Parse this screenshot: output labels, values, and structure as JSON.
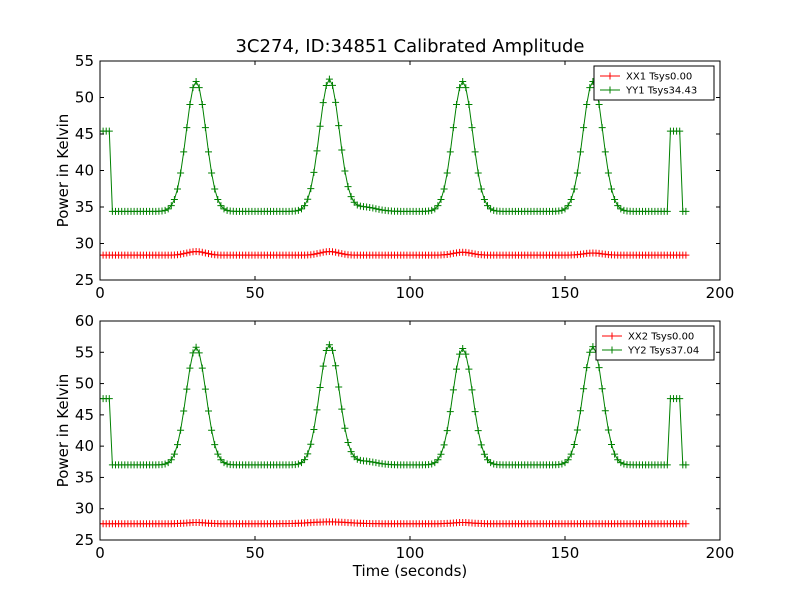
{
  "chart_data": {
    "title": "3C274, ID:34851 Calibrated Amplitude",
    "charts": [
      {
        "type": "line",
        "ylabel": "Power in Kelvin",
        "xlabel": "",
        "xlim": [
          0,
          200
        ],
        "ylim": [
          25,
          55
        ],
        "xticks": [
          0,
          50,
          100,
          150,
          200
        ],
        "yticks": [
          25,
          30,
          35,
          40,
          45,
          50,
          55
        ],
        "legend_position": "top-right",
        "grid": false,
        "x_start": 0,
        "x_end": 189,
        "x_step": 1,
        "series": [
          {
            "name": "XX1 Tsys0.00",
            "color": "#ff0000",
            "marker": "+",
            "baseline": 28.4,
            "bumps": [
              [
                31,
                0.5,
                3
              ],
              [
                74,
                0.5,
                3
              ],
              [
                117,
                0.4,
                3
              ],
              [
                159,
                0.3,
                3
              ]
            ],
            "plateaus": []
          },
          {
            "name": "YY1 Tsys34.43",
            "color": "#008000",
            "marker": "+",
            "baseline": 34.4,
            "bumps": [
              [
                31,
                17.8,
                3.2
              ],
              [
                74,
                18.1,
                3.2
              ],
              [
                117,
                17.8,
                3.2
              ],
              [
                159,
                17.8,
                3.2
              ],
              [
                85,
                0.6,
                4
              ]
            ],
            "plateaus": [
              [
                0,
                3,
                45.4
              ],
              [
                184,
                187,
                45.4
              ]
            ]
          }
        ]
      },
      {
        "type": "line",
        "ylabel": "Power in Kelvin",
        "xlabel": "Time (seconds)",
        "xlim": [
          0,
          200
        ],
        "ylim": [
          25,
          60
        ],
        "xticks": [
          0,
          50,
          100,
          150,
          200
        ],
        "yticks": [
          25,
          30,
          35,
          40,
          45,
          50,
          55,
          60
        ],
        "legend_position": "top-right",
        "grid": false,
        "x_start": 0,
        "x_end": 189,
        "x_step": 1,
        "series": [
          {
            "name": "XX2 Tsys0.00",
            "color": "#ff0000",
            "marker": "+",
            "baseline": 27.6,
            "bumps": [
              [
                74,
                0.3,
                6
              ],
              [
                31,
                0.2,
                3
              ],
              [
                117,
                0.2,
                3
              ]
            ],
            "plateaus": []
          },
          {
            "name": "YY2 Tsys37.04",
            "color": "#008000",
            "marker": "+",
            "baseline": 37.0,
            "bumps": [
              [
                31,
                18.8,
                3.2
              ],
              [
                74,
                19.2,
                3.2
              ],
              [
                117,
                18.6,
                3.2
              ],
              [
                159,
                18.9,
                3.2
              ],
              [
                85,
                0.6,
                4
              ]
            ],
            "plateaus": [
              [
                0,
                3,
                47.6
              ],
              [
                184,
                187,
                47.6
              ]
            ]
          }
        ]
      }
    ]
  }
}
